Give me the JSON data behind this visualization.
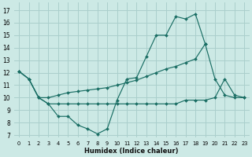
{
  "xlabel": "Humidex (Indice chaleur)",
  "background_color": "#cce9e5",
  "grid_color": "#aacfcc",
  "line_color": "#1a6e64",
  "xlim": [
    -0.5,
    23.5
  ],
  "ylim": [
    6.8,
    17.6
  ],
  "yticks": [
    7,
    8,
    9,
    10,
    11,
    12,
    13,
    14,
    15,
    16,
    17
  ],
  "xticks": [
    0,
    1,
    2,
    3,
    4,
    5,
    6,
    7,
    8,
    9,
    10,
    11,
    12,
    13,
    14,
    15,
    16,
    17,
    18,
    19,
    20,
    21,
    22,
    23
  ],
  "series": [
    {
      "x": [
        0,
        1,
        2,
        3,
        4,
        5,
        6,
        7,
        8,
        9,
        10,
        11,
        12,
        13,
        14,
        15,
        16,
        17,
        18,
        19
      ],
      "y": [
        12.1,
        11.5,
        10.0,
        9.5,
        8.5,
        8.5,
        7.8,
        7.5,
        7.1,
        7.5,
        9.8,
        11.5,
        11.6,
        13.3,
        15.0,
        15.0,
        16.5,
        16.3,
        16.7,
        14.3
      ]
    },
    {
      "x": [
        0,
        1,
        2,
        3,
        4,
        5,
        6,
        7,
        8,
        9,
        10,
        11,
        12,
        13,
        14,
        15,
        16,
        17,
        18,
        19,
        20,
        21,
        22,
        23
      ],
      "y": [
        12.1,
        11.5,
        10.0,
        10.0,
        10.2,
        10.4,
        10.5,
        10.6,
        10.7,
        10.8,
        11.0,
        11.2,
        11.4,
        11.7,
        12.0,
        12.3,
        12.5,
        12.8,
        13.1,
        14.3,
        11.5,
        10.2,
        10.0,
        10.0
      ]
    },
    {
      "x": [
        0,
        1,
        2,
        3,
        4,
        5,
        6,
        7,
        8,
        9,
        10,
        11,
        12,
        13,
        14,
        15,
        16,
        17,
        18,
        19,
        20,
        21,
        22,
        23
      ],
      "y": [
        12.1,
        11.5,
        10.0,
        9.5,
        9.5,
        9.5,
        9.5,
        9.5,
        9.5,
        9.5,
        9.5,
        9.5,
        9.5,
        9.5,
        9.5,
        9.5,
        9.5,
        9.8,
        9.8,
        9.8,
        10.0,
        11.5,
        10.2,
        10.0
      ]
    }
  ]
}
